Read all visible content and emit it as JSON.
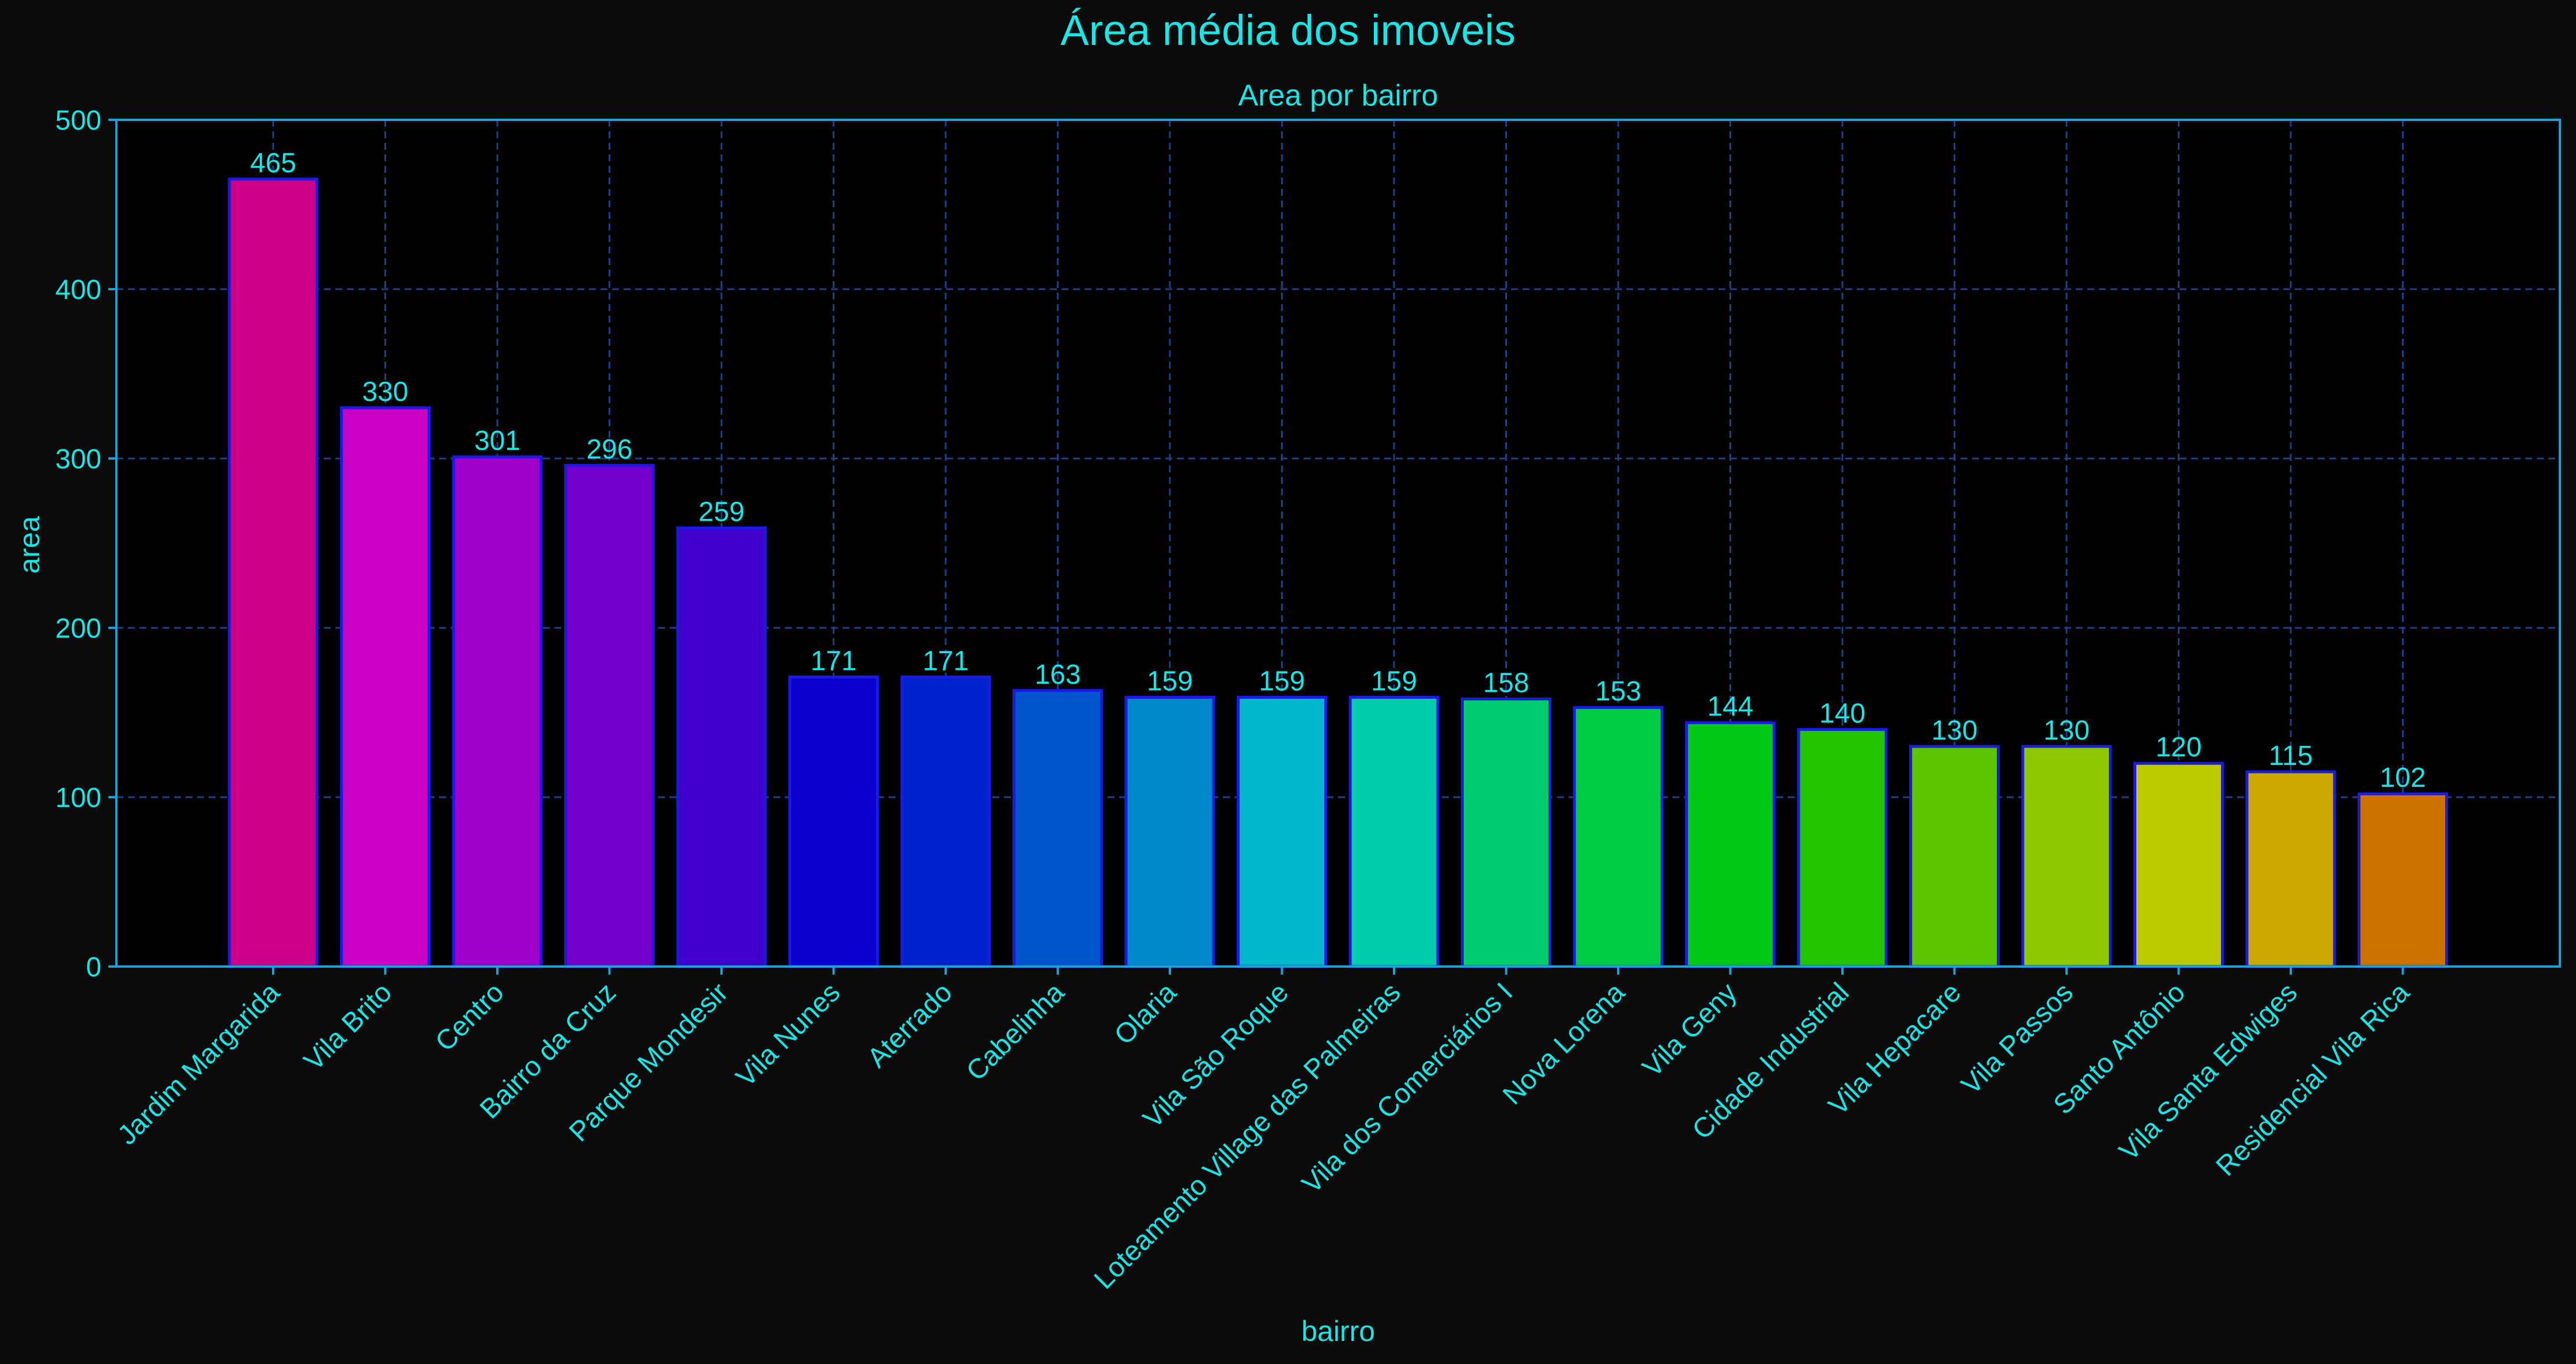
{
  "chart_data": {
    "type": "bar",
    "title": "Área média dos imoveis",
    "subtitle": "Area por bairro",
    "xlabel": "bairro",
    "ylabel": "area",
    "ylim": [
      0,
      500
    ],
    "yticks": [
      0,
      100,
      200,
      300,
      400,
      500
    ],
    "grid": true,
    "categories": [
      "Jardim Margarida",
      "Vila Brito",
      "Centro",
      "Bairro da Cruz",
      "Parque Mondesir",
      "Vila Nunes",
      "Aterrado",
      "Cabelinha",
      "Olaria",
      "Vila São Roque",
      "Loteamento Village das Palmeiras",
      "Vila dos Comerciários I",
      "Nova Lorena",
      "Vila Geny",
      "Cidade Industrial",
      "Vila Hepacare",
      "Vila Passos",
      "Santo Antônio",
      "Vila Santa Edwiges",
      "Residencial Vila Rica"
    ],
    "values": [
      465,
      330,
      301,
      296,
      259,
      171,
      171,
      163,
      159,
      159,
      159,
      158,
      153,
      144,
      140,
      130,
      130,
      120,
      115,
      102
    ],
    "bar_colors": [
      "#cc0088",
      "#cc00c4",
      "#a000cc",
      "#7400cc",
      "#3f00cc",
      "#0a00d0",
      "#0022cc",
      "#0055cc",
      "#0088cc",
      "#00b8cc",
      "#00ccaa",
      "#00cc70",
      "#00cc44",
      "#00c814",
      "#22c400",
      "#5ac400",
      "#8ec800",
      "#bcc800",
      "#cca800",
      "#cc7000"
    ],
    "colors": {
      "text": "#19e6e6",
      "background": "#0b0b0b",
      "plot_background": "#000000",
      "axes_edge": "#1aa3d9",
      "grid": "#1f3f8a",
      "bar_edge": "#1a1ae6"
    }
  }
}
